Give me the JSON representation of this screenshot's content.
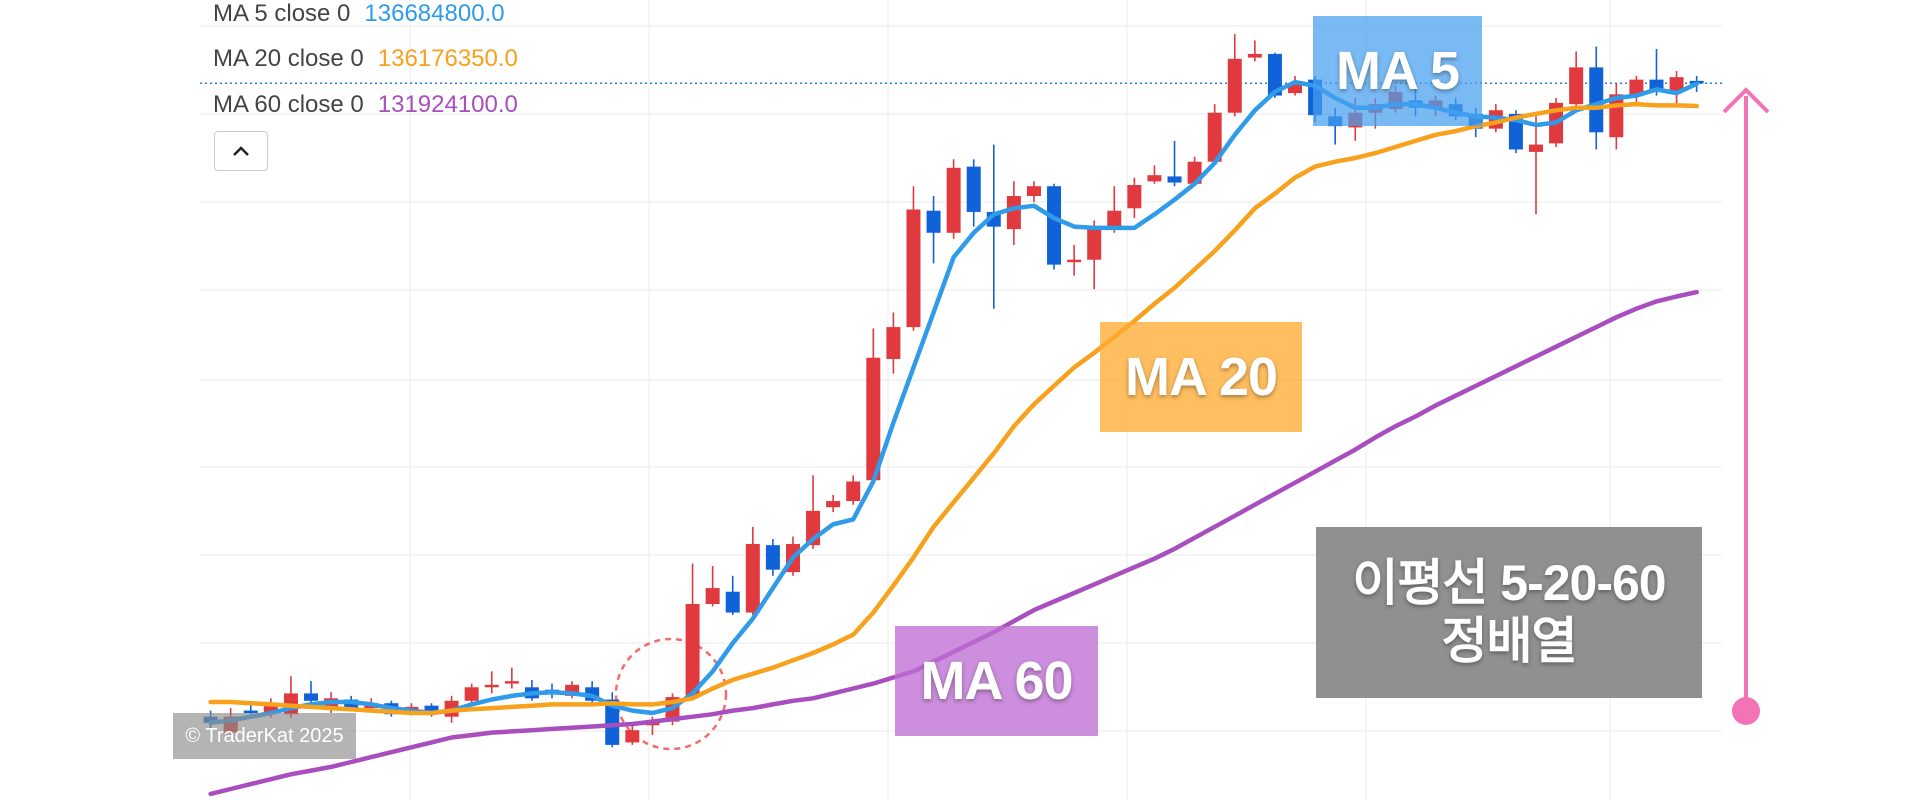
{
  "chart_data": {
    "type": "candlestick",
    "ylim": [
      120316000,
      138600000
    ],
    "up_color": "#e0393e",
    "down_color": "#1062d8",
    "categories": [
      null,
      null,
      null,
      null,
      null,
      null,
      null,
      null,
      null,
      null,
      null,
      null,
      null,
      null,
      null,
      null,
      null,
      null,
      null,
      null,
      null,
      null,
      null,
      null,
      null,
      null,
      null,
      null,
      null,
      null,
      null,
      null,
      null,
      null,
      null,
      null,
      null,
      null,
      null,
      null,
      null,
      null,
      null,
      null,
      null,
      null,
      null,
      null,
      null,
      null,
      null,
      null,
      null,
      null,
      null,
      null,
      null,
      null,
      null,
      null,
      null,
      null,
      null,
      null,
      null,
      null,
      null,
      null,
      null,
      null,
      null,
      null,
      null,
      null,
      null
    ],
    "open": [
      122220000,
      121856000,
      122360000,
      122304000,
      122276000,
      122752000,
      122416000,
      122612000,
      122416000,
      122528000,
      122304000,
      122472000,
      122220000,
      122584000,
      122892000,
      122976000,
      122892000,
      122836000,
      122696000,
      122892000,
      122612000,
      121632000,
      122024000,
      122108000,
      122668000,
      124796000,
      125076000,
      124600000,
      126140000,
      125524000,
      126140000,
      127008000,
      127148000,
      127624000,
      130396000,
      131124000,
      133784000,
      133280000,
      134792000,
      133756000,
      133364000,
      134120000,
      134344000,
      132608000,
      132664000,
      133392000,
      133840000,
      134456000,
      134568000,
      134400000,
      134904000,
      136024000,
      137284000,
      137368000,
      136472000,
      136780000,
      135940000,
      135688000,
      136024000,
      136108000,
      136304000,
      136136000,
      136220000,
      135996000,
      135660000,
      135996000,
      135128000,
      135324000,
      136220000,
      137060000,
      135464000,
      136416000,
      136780000,
      136500000,
      136752000
    ],
    "high": [
      122360000,
      122416000,
      122500000,
      122640000,
      123144000,
      123032000,
      122780000,
      122696000,
      122640000,
      122584000,
      122528000,
      122528000,
      122696000,
      122976000,
      123256000,
      123340000,
      123060000,
      122976000,
      123032000,
      123032000,
      122780000,
      122080000,
      122220000,
      122752000,
      125720000,
      125664000,
      125440000,
      126560000,
      126280000,
      126336000,
      127736000,
      127288000,
      127736000,
      131096000,
      131460000,
      134344000,
      134120000,
      134960000,
      134960000,
      135296000,
      134456000,
      134456000,
      134400000,
      133000000,
      133560000,
      134344000,
      134540000,
      134820000,
      135380000,
      135016000,
      136220000,
      137816000,
      137676000,
      137396000,
      136864000,
      136864000,
      136136000,
      136360000,
      136360000,
      136640000,
      136640000,
      136416000,
      136360000,
      136136000,
      136220000,
      136080000,
      135940000,
      136360000,
      137424000,
      137536000,
      136696000,
      136864000,
      137480000,
      136976000,
      136864000
    ],
    "low": [
      121940000,
      121800000,
      122220000,
      122192000,
      122192000,
      122472000,
      122304000,
      122360000,
      122360000,
      122220000,
      122248000,
      122220000,
      122080000,
      122528000,
      122752000,
      122864000,
      122584000,
      122640000,
      122640000,
      122500000,
      121520000,
      121576000,
      121800000,
      122024000,
      122612000,
      124740000,
      124544000,
      124544000,
      125440000,
      125440000,
      126056000,
      126896000,
      127064000,
      127540000,
      130060000,
      131040000,
      132580000,
      133140000,
      133420000,
      131544000,
      133000000,
      133980000,
      132440000,
      132300000,
      131992000,
      133280000,
      133616000,
      134400000,
      134344000,
      134344000,
      134820000,
      135940000,
      137200000,
      136360000,
      136416000,
      135800000,
      135296000,
      135380000,
      135660000,
      136024000,
      135940000,
      135940000,
      135856000,
      135464000,
      135576000,
      135100000,
      133700000,
      135240000,
      136136000,
      135184000,
      135184000,
      136220000,
      136416000,
      136220000,
      136500000
    ],
    "close": [
      122080000,
      122220000,
      122304000,
      122500000,
      122752000,
      122584000,
      122640000,
      122416000,
      122528000,
      122276000,
      122444000,
      122276000,
      122584000,
      122892000,
      122948000,
      123032000,
      122640000,
      122752000,
      122948000,
      122584000,
      121576000,
      121912000,
      122080000,
      122668000,
      124796000,
      125160000,
      124600000,
      126168000,
      125580000,
      126168000,
      126924000,
      127148000,
      127596000,
      130424000,
      131124000,
      133812000,
      133280000,
      134764000,
      133756000,
      133420000,
      134120000,
      134344000,
      132552000,
      132664000,
      133392000,
      133784000,
      134372000,
      134596000,
      134428000,
      134904000,
      136024000,
      137256000,
      137368000,
      136416000,
      136696000,
      135968000,
      135716000,
      136024000,
      136220000,
      136500000,
      136136000,
      136304000,
      135940000,
      135660000,
      136080000,
      135184000,
      135296000,
      136248000,
      137060000,
      135576000,
      136444000,
      136780000,
      136500000,
      136836000,
      136696000
    ],
    "series": [
      {
        "name": "MA 5",
        "legend_label": "MA 5 close 0",
        "value_label": "136684800.0",
        "color": "#2f9be9",
        "values": [
          122080000,
          122136000,
          122220000,
          122304000,
          122416000,
          122500000,
          122556000,
          122556000,
          122500000,
          122416000,
          122360000,
          122304000,
          122360000,
          122500000,
          122612000,
          122696000,
          122752000,
          122780000,
          122752000,
          122696000,
          122472000,
          122360000,
          122304000,
          122416000,
          122752000,
          123256000,
          123900000,
          124460000,
          125160000,
          125860000,
          126280000,
          126616000,
          126728000,
          127596000,
          128940000,
          130200000,
          131460000,
          132720000,
          133280000,
          133700000,
          133840000,
          133896000,
          133616000,
          133420000,
          133392000,
          133392000,
          133392000,
          133700000,
          134036000,
          134400000,
          134876000,
          135520000,
          136080000,
          136500000,
          136724000,
          136640000,
          136360000,
          136136000,
          136136000,
          136220000,
          136220000,
          136136000,
          136024000,
          135940000,
          135912000,
          135856000,
          135744000,
          135800000,
          136080000,
          136220000,
          136360000,
          136416000,
          136556000,
          136472000,
          136684800
        ]
      },
      {
        "name": "MA 20",
        "legend_label": "MA 20 close 0",
        "value_label": "136176350.0",
        "color": "#f7a11d",
        "values": [
          122556000,
          122556000,
          122528000,
          122500000,
          122472000,
          122444000,
          122416000,
          122388000,
          122360000,
          122332000,
          122304000,
          122304000,
          122360000,
          122388000,
          122416000,
          122444000,
          122472000,
          122500000,
          122500000,
          122500000,
          122528000,
          122500000,
          122500000,
          122556000,
          122640000,
          122864000,
          123060000,
          123200000,
          123340000,
          123508000,
          123676000,
          123872000,
          124096000,
          124600000,
          125216000,
          125860000,
          126560000,
          127120000,
          127680000,
          128240000,
          128856000,
          129360000,
          129780000,
          130200000,
          130536000,
          130900000,
          131264000,
          131656000,
          132020000,
          132440000,
          132860000,
          133336000,
          133840000,
          134176000,
          134540000,
          134792000,
          134904000,
          134988000,
          135100000,
          135240000,
          135380000,
          135520000,
          135604000,
          135716000,
          135800000,
          135912000,
          135996000,
          136080000,
          136136000,
          136136000,
          136192000,
          136220000,
          136192000,
          136192000,
          136176350
        ]
      },
      {
        "name": "MA 60",
        "legend_label": "MA 60 close 0",
        "value_label": "131924100.0",
        "color": "#a94ebf",
        "values": [
          120456000,
          120568000,
          120680000,
          120792000,
          120904000,
          120988000,
          121072000,
          121184000,
          121296000,
          121408000,
          121520000,
          121632000,
          121744000,
          121800000,
          121856000,
          121884000,
          121912000,
          121940000,
          121968000,
          121996000,
          122024000,
          122052000,
          122108000,
          122164000,
          122220000,
          122276000,
          122360000,
          122416000,
          122500000,
          122584000,
          122640000,
          122752000,
          122864000,
          122976000,
          123116000,
          123256000,
          123480000,
          123704000,
          123928000,
          124152000,
          124404000,
          124656000,
          124852000,
          125048000,
          125244000,
          125440000,
          125636000,
          125832000,
          126056000,
          126308000,
          126560000,
          126812000,
          127064000,
          127316000,
          127568000,
          127820000,
          128072000,
          128324000,
          128604000,
          128856000,
          129080000,
          129332000,
          129556000,
          129780000,
          130004000,
          130228000,
          130452000,
          130676000,
          130900000,
          131124000,
          131348000,
          131544000,
          131712000,
          131824000,
          131924100
        ]
      }
    ],
    "annotations": [
      {
        "lines": [
          "MA 5"
        ],
        "color": "rgba(70,160,240,0.72)"
      },
      {
        "lines": [
          "MA 20"
        ],
        "color": "rgba(255,172,50,0.78)"
      },
      {
        "lines": [
          "MA 60"
        ],
        "color": "rgba(190,110,212,0.78)"
      },
      {
        "lines": [
          "이평선 5-20-60",
          "정배열"
        ],
        "color": "rgba(125,125,125,0.85)"
      }
    ],
    "watermark": "© TraderKat 2025"
  }
}
